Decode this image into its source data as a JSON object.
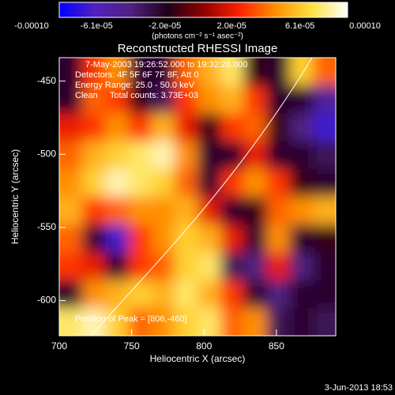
{
  "chart_data": {
    "type": "heatmap",
    "title": "Reconstructed RHESSI Image",
    "x_label": "Heliocentric X (arcsec)",
    "y_label": "Heliocentric Y (arcsec)",
    "colorbar_label": "(photons cm⁻² s⁻¹ asec⁻²)",
    "annotations": [
      "7-May-2003 19:26:52.000 to 19:32:26.000",
      "Detectors: 4F 5F 6F 7F 8F, Att 0",
      "Energy Range: 25.0 - 50.0 keV",
      "Clean     Total counts: 3.73E+03"
    ],
    "peak_label": "Position of Peak = [806,-460]",
    "timestamp": "3-Jun-2013 18:53",
    "xlim": [
      700,
      891
    ],
    "ylim": [
      -624,
      -434
    ],
    "xticks": [
      700,
      750,
      800,
      850
    ],
    "yticks": [
      -450,
      -500,
      -550,
      -600
    ],
    "clim": [
      -0.0001,
      0.0001
    ],
    "cticks": [
      {
        "value": -0.0001,
        "label": "-0.00010"
      },
      {
        "value": -6.1e-05,
        "label": "-6.1e-05"
      },
      {
        "value": -2e-05,
        "label": "-2.0e-05"
      },
      {
        "value": 2e-05,
        "label": "2.0e-05"
      },
      {
        "value": 6.1e-05,
        "label": "6.1e-05"
      },
      {
        "value": 0.0001,
        "label": "0.00010"
      }
    ],
    "colormap": [
      "#0000ff",
      "#5020c0",
      "#502080",
      "#200018",
      "#900000",
      "#ff2000",
      "#ff9000",
      "#ffe040",
      "#ffffff"
    ],
    "z": [
      [
        -3e-05,
        3e-05,
        5e-05,
        -3e-05,
        -3e-05,
        4e-05,
        6e-05,
        8e-05,
        -2e-05,
        -3e-05,
        7e-05,
        4e-05
      ],
      [
        -3e-05,
        4e-05,
        3e-05,
        -2e-05,
        -4e-05,
        3e-05,
        5e-05,
        6e-05,
        3e-05,
        -3e-05,
        -3e-05,
        -6e-05
      ],
      [
        2e-05,
        3e-05,
        5e-05,
        3e-05,
        6e-05,
        2e-05,
        -2e-05,
        3e-05,
        4e-05,
        -2e-05,
        -5e-05,
        -8e-05
      ],
      [
        4e-05,
        6e-05,
        7e-05,
        8e-05,
        9e-05,
        5e-05,
        -3e-05,
        -3e-05,
        2e-05,
        -3e-05,
        -3e-05,
        -4e-05
      ],
      [
        5e-05,
        7e-05,
        9e-05,
        8e-05,
        7e-05,
        4e-05,
        -3e-05,
        3e-05,
        5e-05,
        3e-05,
        -2e-05,
        -3e-05
      ],
      [
        6e-05,
        3e-05,
        4e-05,
        5e-05,
        5e-05,
        6e-05,
        2e-05,
        -3e-05,
        -2e-05,
        4e-05,
        5e-05,
        6e-05
      ],
      [
        4e-05,
        -3e-05,
        -8e-05,
        3e-05,
        5e-05,
        7e-05,
        6e-05,
        2e-05,
        -3e-05,
        5e-05,
        -3e-05,
        -2e-05
      ],
      [
        3e-05,
        2e-05,
        -3e-05,
        3e-05,
        4e-05,
        7e-05,
        8e-05,
        -4e-05,
        -5e-05,
        2e-05,
        -5e-05,
        -3e-05
      ],
      [
        -3e-05,
        5e-05,
        6e-05,
        7e-05,
        6e-05,
        8e-05,
        6e-05,
        3e-05,
        -3e-05,
        -5e-05,
        -3e-05,
        -3e-05
      ],
      [
        8e-05,
        9e-05,
        7e-05,
        4e-05,
        5e-05,
        7e-05,
        8e-05,
        4e-05,
        5e-05,
        -4e-05,
        -3e-05,
        -4e-05
      ]
    ]
  }
}
